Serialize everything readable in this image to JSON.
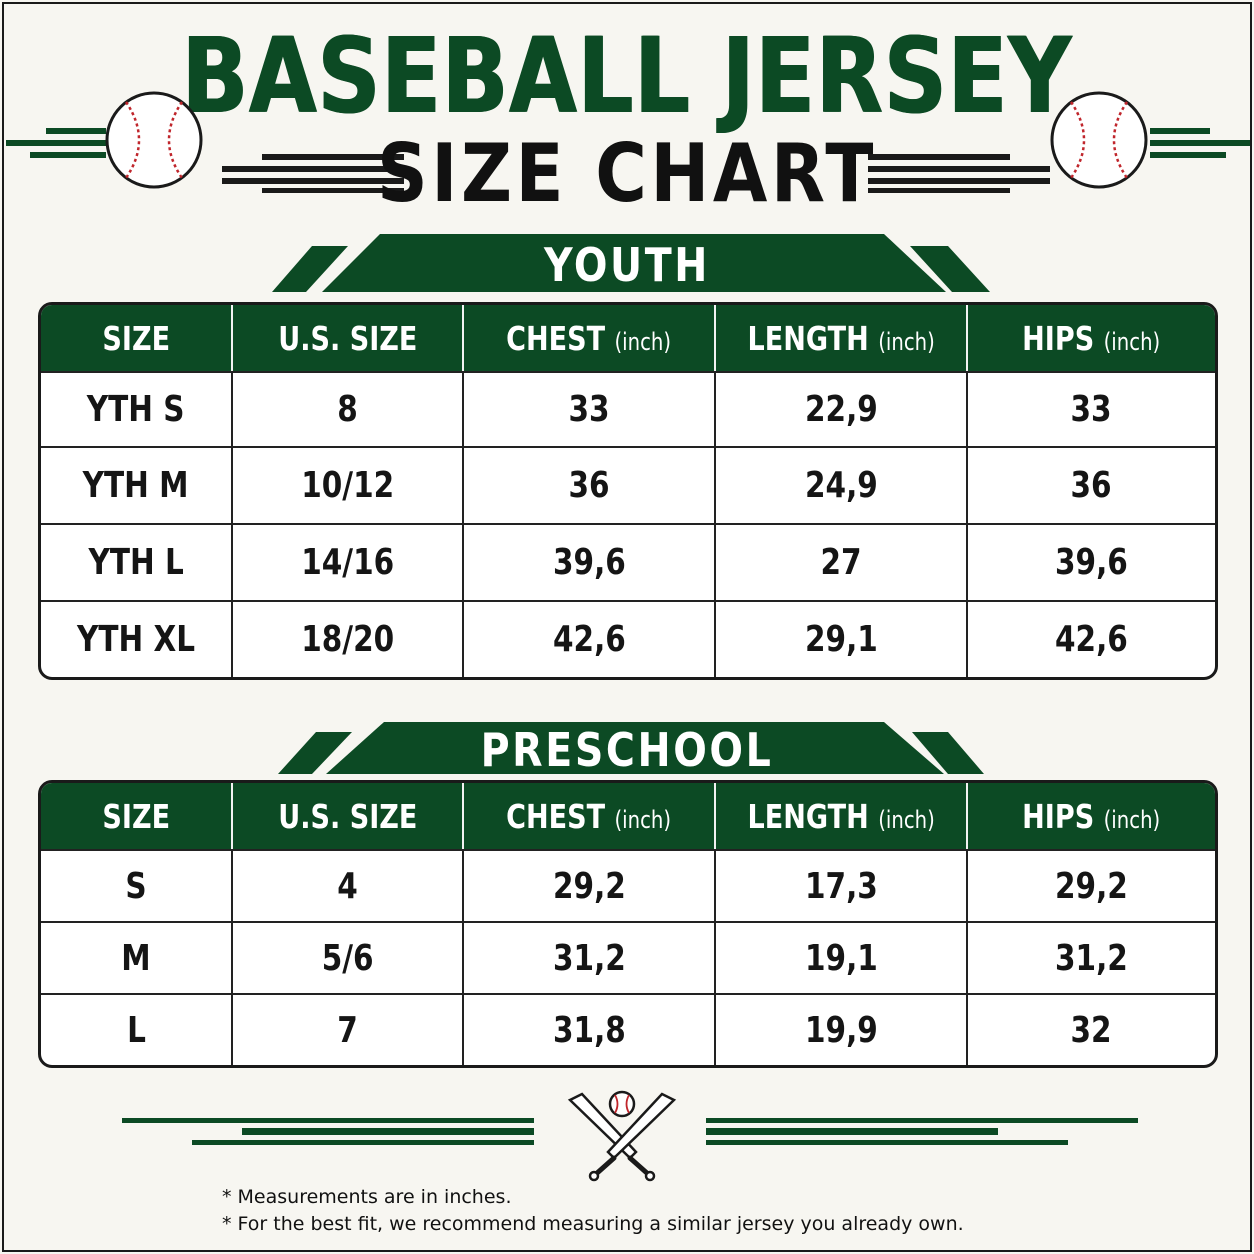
{
  "header": {
    "title": "BASEBALL JERSEY",
    "subtitle": "SIZE CHART"
  },
  "colors": {
    "brand_green": "#0c4a24",
    "stitch_red": "#c0262c",
    "background": "#f7f6f1"
  },
  "icons": [
    "baseball-icon",
    "crossed-bats-icon"
  ],
  "youth": {
    "title": "YOUTH",
    "columns": [
      {
        "label": "SIZE",
        "unit": ""
      },
      {
        "label": "U.S. SIZE",
        "unit": ""
      },
      {
        "label": "CHEST",
        "unit": "(inch)"
      },
      {
        "label": "LENGTH",
        "unit": "(inch)"
      },
      {
        "label": "HIPS",
        "unit": "(inch)"
      }
    ],
    "rows": [
      [
        "YTH S",
        "8",
        "33",
        "22,9",
        "33"
      ],
      [
        "YTH M",
        "10/12",
        "36",
        "24,9",
        "36"
      ],
      [
        "YTH L",
        "14/16",
        "39,6",
        "27",
        "39,6"
      ],
      [
        "YTH XL",
        "18/20",
        "42,6",
        "29,1",
        "42,6"
      ]
    ]
  },
  "preschool": {
    "title": "PRESCHOOL",
    "columns": [
      {
        "label": "SIZE",
        "unit": ""
      },
      {
        "label": "U.S. SIZE",
        "unit": ""
      },
      {
        "label": "CHEST",
        "unit": "(inch)"
      },
      {
        "label": "LENGTH",
        "unit": "(inch)"
      },
      {
        "label": "HIPS",
        "unit": "(inch)"
      }
    ],
    "rows": [
      [
        "S",
        "4",
        "29,2",
        "17,3",
        "29,2"
      ],
      [
        "M",
        "5/6",
        "31,2",
        "19,1",
        "31,2"
      ],
      [
        "L",
        "7",
        "31,8",
        "19,9",
        "32"
      ]
    ]
  },
  "notes": [
    "* Measurements are in inches.",
    "* For the best fit, we recommend measuring a similar jersey you already own."
  ]
}
